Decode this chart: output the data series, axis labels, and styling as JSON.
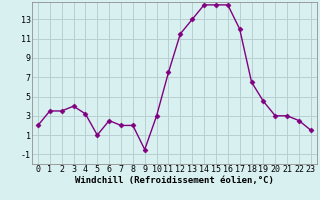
{
  "x": [
    0,
    1,
    2,
    3,
    4,
    5,
    6,
    7,
    8,
    9,
    10,
    11,
    12,
    13,
    14,
    15,
    16,
    17,
    18,
    19,
    20,
    21,
    22,
    23
  ],
  "y": [
    2.0,
    3.5,
    3.5,
    4.0,
    3.2,
    1.0,
    2.5,
    2.0,
    2.0,
    -0.5,
    3.0,
    7.5,
    11.5,
    13.0,
    14.5,
    14.5,
    14.5,
    12.0,
    6.5,
    4.5,
    3.0,
    3.0,
    2.5,
    1.5
  ],
  "line_color": "#800080",
  "marker": "D",
  "marker_size": 2.5,
  "bg_color": "#d8f0f0",
  "grid_color": "#b8d0d0",
  "xlabel": "Windchill (Refroidissement éolien,°C)",
  "ylim": [
    -2,
    14.8
  ],
  "xlim": [
    -0.5,
    23.5
  ],
  "yticks": [
    -1,
    1,
    3,
    5,
    7,
    9,
    11,
    13
  ],
  "xticks": [
    0,
    1,
    2,
    3,
    4,
    5,
    6,
    7,
    8,
    9,
    10,
    11,
    12,
    13,
    14,
    15,
    16,
    17,
    18,
    19,
    20,
    21,
    22,
    23
  ],
  "xlabel_fontsize": 6.5,
  "tick_fontsize": 6,
  "line_width": 1.0
}
